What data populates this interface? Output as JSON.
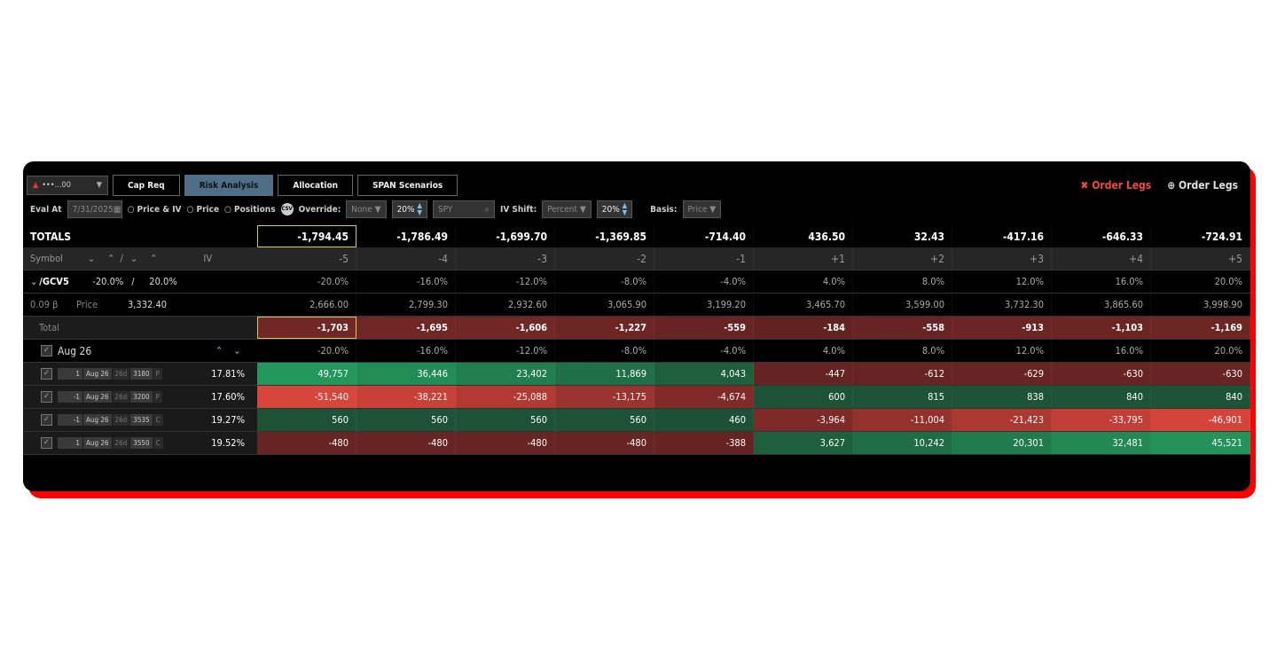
{
  "account": {
    "label": "•••…00"
  },
  "tabs": [
    {
      "label": "Cap Req"
    },
    {
      "label": "Risk Analysis",
      "active": true
    },
    {
      "label": "Allocation"
    },
    {
      "label": "SPAN Scenarios"
    }
  ],
  "order_legs": {
    "remove_label": "Order Legs",
    "add_label": "Order Legs"
  },
  "toolbar": {
    "eval_at_label": "Eval At",
    "eval_date": "7/31/2025",
    "radios": [
      "Price & IV",
      "Price",
      "Positions"
    ],
    "csv_label": "CSV",
    "override_label": "Override:",
    "override_value": "None",
    "override_pct": "20%",
    "symbol_placeholder": "SPY",
    "iv_shift_label": "IV Shift:",
    "iv_shift_mode": "Percent",
    "iv_shift_pct": "20%",
    "basis_label": "Basis:",
    "basis_value": "Price"
  },
  "totals": {
    "label": "TOTALS",
    "values": [
      "-1,794.45",
      "-1,786.49",
      "-1,699.70",
      "-1,369.85",
      "-714.40",
      "436.50",
      "32.43",
      "-417.16",
      "-646.33",
      "-724.91"
    ]
  },
  "header": {
    "symbol": "Symbol",
    "iv": "IV",
    "steps": [
      "-5",
      "-4",
      "-3",
      "-2",
      "-1",
      "+1",
      "+2",
      "+3",
      "+4",
      "+5"
    ]
  },
  "underlying": {
    "symbol": "/GCV5",
    "range_low": "-20.0%",
    "sep": "/",
    "range_high": "20.0%",
    "pcts": [
      "-20.0%",
      "-16.0%",
      "-12.0%",
      "-8.0%",
      "-4.0%",
      "4.0%",
      "8.0%",
      "12.0%",
      "16.0%",
      "20.0%"
    ]
  },
  "price_row": {
    "beta": "0.09 β",
    "label": "Price",
    "price": "3,332.40",
    "values": [
      "2,666.00",
      "2,799.30",
      "2,932.60",
      "3,065.90",
      "3,199.20",
      "3,465.70",
      "3,599.00",
      "3,732.30",
      "3,865.60",
      "3,998.90"
    ]
  },
  "total_row": {
    "label": "Total",
    "values": [
      "-1,703",
      "-1,695",
      "-1,606",
      "-1,227",
      "-559",
      "-184",
      "-558",
      "-913",
      "-1,103",
      "-1,169"
    ]
  },
  "expiry": {
    "label": "Aug 26",
    "pcts": [
      "-20.0%",
      "-16.0%",
      "-12.0%",
      "-8.0%",
      "-4.0%",
      "4.0%",
      "8.0%",
      "12.0%",
      "16.0%",
      "20.0%"
    ]
  },
  "legs": [
    {
      "qty": "1",
      "exp": "Aug 26",
      "dte": "26d",
      "strike": "3180",
      "type": "P",
      "iv": "17.81%",
      "values": [
        "49,757",
        "36,446",
        "23,402",
        "11,869",
        "4,043",
        "-447",
        "-612",
        "-629",
        "-630",
        "-630"
      ]
    },
    {
      "qty": "-1",
      "exp": "Aug 26",
      "dte": "26d",
      "strike": "3200",
      "type": "P",
      "iv": "17.60%",
      "values": [
        "-51,540",
        "-38,221",
        "-25,088",
        "-13,175",
        "-4,674",
        "600",
        "815",
        "838",
        "840",
        "840"
      ]
    },
    {
      "qty": "-1",
      "exp": "Aug 26",
      "dte": "26d",
      "strike": "3535",
      "type": "C",
      "iv": "19.27%",
      "values": [
        "560",
        "560",
        "560",
        "560",
        "460",
        "-3,964",
        "-11,004",
        "-21,423",
        "-33,795",
        "-46,901"
      ]
    },
    {
      "qty": "1",
      "exp": "Aug 26",
      "dte": "26d",
      "strike": "3550",
      "type": "C",
      "iv": "19.52%",
      "values": [
        "-480",
        "-480",
        "-480",
        "-480",
        "-388",
        "3,627",
        "10,242",
        "20,301",
        "32,481",
        "45,521"
      ]
    }
  ],
  "colors": {
    "accent": "#4e6f87",
    "positive": "#23975c",
    "negative": "#d8453b",
    "frame": "#ff0000",
    "order_legs_remove": "#f04a3c"
  }
}
